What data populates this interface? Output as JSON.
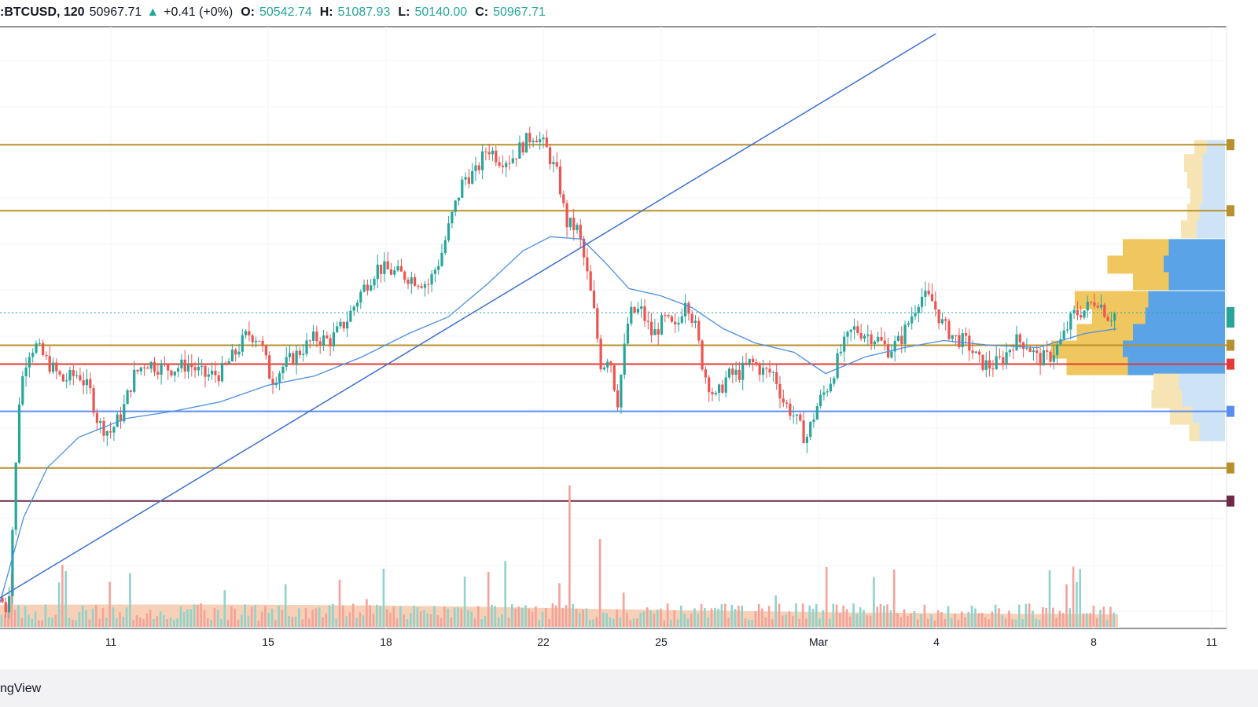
{
  "legend": {
    "symbol": ":BTCUSD, 120",
    "last": "50967.71",
    "change_arrow": "▲",
    "change": "+0.41 (+0%)",
    "o_label": "O:",
    "o": "50542.74",
    "h_label": "H:",
    "h": "51087.93",
    "l_label": "L:",
    "l": "50140.00",
    "c_label": "C:",
    "c": "50967.71"
  },
  "brand": "ngView",
  "colors": {
    "up": "#26a69a",
    "down": "#ef5350",
    "ma": "#4a90e2",
    "gold": "#b8902c",
    "red_line": "#e53935",
    "blue_line": "#5b8def",
    "purple_line": "#6d2a4a",
    "trend": "#3d6fd6"
  },
  "chart_data": {
    "type": "candlestick",
    "x_ticks": [
      "11",
      "15",
      "18",
      "22",
      "25",
      "Mar",
      "4",
      "8",
      "11"
    ],
    "price_series": [
      {
        "x": 0,
        "p": 50780
      },
      {
        "x": 10,
        "p": 50720
      },
      {
        "x": 18,
        "p": 51200
      },
      {
        "x": 25,
        "p": 51650
      },
      {
        "x": 35,
        "p": 51820
      },
      {
        "x": 45,
        "p": 51850
      },
      {
        "x": 60,
        "p": 51780
      },
      {
        "x": 80,
        "p": 51700
      },
      {
        "x": 100,
        "p": 51730
      },
      {
        "x": 115,
        "p": 51650
      },
      {
        "x": 125,
        "p": 51520
      },
      {
        "x": 140,
        "p": 51480
      },
      {
        "x": 155,
        "p": 51560
      },
      {
        "x": 170,
        "p": 51720
      },
      {
        "x": 185,
        "p": 51780
      },
      {
        "x": 200,
        "p": 51760
      },
      {
        "x": 220,
        "p": 51750
      },
      {
        "x": 240,
        "p": 51770
      },
      {
        "x": 260,
        "p": 51720
      },
      {
        "x": 280,
        "p": 51730
      },
      {
        "x": 300,
        "p": 51820
      },
      {
        "x": 315,
        "p": 51900
      },
      {
        "x": 330,
        "p": 51880
      },
      {
        "x": 345,
        "p": 51700
      },
      {
        "x": 360,
        "p": 51760
      },
      {
        "x": 380,
        "p": 51820
      },
      {
        "x": 400,
        "p": 51880
      },
      {
        "x": 420,
        "p": 51870
      },
      {
        "x": 440,
        "p": 51950
      },
      {
        "x": 460,
        "p": 52080
      },
      {
        "x": 480,
        "p": 52180
      },
      {
        "x": 500,
        "p": 52160
      },
      {
        "x": 520,
        "p": 52140
      },
      {
        "x": 545,
        "p": 52110
      },
      {
        "x": 560,
        "p": 52220
      },
      {
        "x": 575,
        "p": 52400
      },
      {
        "x": 590,
        "p": 52560
      },
      {
        "x": 605,
        "p": 52580
      },
      {
        "x": 620,
        "p": 52690
      },
      {
        "x": 635,
        "p": 52640
      },
      {
        "x": 650,
        "p": 52640
      },
      {
        "x": 665,
        "p": 52700
      },
      {
        "x": 680,
        "p": 52750
      },
      {
        "x": 695,
        "p": 52680
      },
      {
        "x": 710,
        "p": 52560
      },
      {
        "x": 720,
        "p": 52370
      },
      {
        "x": 735,
        "p": 52340
      },
      {
        "x": 745,
        "p": 52180
      },
      {
        "x": 755,
        "p": 52000
      },
      {
        "x": 765,
        "p": 51750
      },
      {
        "x": 775,
        "p": 51820
      },
      {
        "x": 785,
        "p": 51600
      },
      {
        "x": 800,
        "p": 51980
      },
      {
        "x": 815,
        "p": 52000
      },
      {
        "x": 830,
        "p": 51890
      },
      {
        "x": 845,
        "p": 51960
      },
      {
        "x": 860,
        "p": 51910
      },
      {
        "x": 872,
        "p": 52060
      },
      {
        "x": 885,
        "p": 51920
      },
      {
        "x": 895,
        "p": 51740
      },
      {
        "x": 910,
        "p": 51620
      },
      {
        "x": 925,
        "p": 51720
      },
      {
        "x": 940,
        "p": 51730
      },
      {
        "x": 955,
        "p": 51780
      },
      {
        "x": 970,
        "p": 51740
      },
      {
        "x": 985,
        "p": 51730
      },
      {
        "x": 995,
        "p": 51620
      },
      {
        "x": 1010,
        "p": 51550
      },
      {
        "x": 1025,
        "p": 51450
      },
      {
        "x": 1040,
        "p": 51600
      },
      {
        "x": 1055,
        "p": 51690
      },
      {
        "x": 1070,
        "p": 51830
      },
      {
        "x": 1085,
        "p": 51920
      },
      {
        "x": 1100,
        "p": 51900
      },
      {
        "x": 1115,
        "p": 51880
      },
      {
        "x": 1130,
        "p": 51830
      },
      {
        "x": 1145,
        "p": 51870
      },
      {
        "x": 1160,
        "p": 51980
      },
      {
        "x": 1170,
        "p": 52060
      },
      {
        "x": 1185,
        "p": 52040
      },
      {
        "x": 1200,
        "p": 51930
      },
      {
        "x": 1215,
        "p": 51880
      },
      {
        "x": 1230,
        "p": 51860
      },
      {
        "x": 1245,
        "p": 51780
      },
      {
        "x": 1260,
        "p": 51760
      },
      {
        "x": 1275,
        "p": 51790
      },
      {
        "x": 1290,
        "p": 51870
      },
      {
        "x": 1305,
        "p": 51860
      },
      {
        "x": 1320,
        "p": 51790
      },
      {
        "x": 1335,
        "p": 51800
      },
      {
        "x": 1350,
        "p": 51870
      },
      {
        "x": 1365,
        "p": 51980
      },
      {
        "x": 1380,
        "p": 52000
      },
      {
        "x": 1395,
        "p": 52050
      },
      {
        "x": 1410,
        "p": 51970
      },
      {
        "x": 1422,
        "p": 51990
      }
    ],
    "moving_average": [
      {
        "x": 0,
        "p": 50760
      },
      {
        "x": 30,
        "p": 51120
      },
      {
        "x": 60,
        "p": 51330
      },
      {
        "x": 100,
        "p": 51460
      },
      {
        "x": 160,
        "p": 51540
      },
      {
        "x": 220,
        "p": 51570
      },
      {
        "x": 280,
        "p": 51610
      },
      {
        "x": 340,
        "p": 51680
      },
      {
        "x": 400,
        "p": 51720
      },
      {
        "x": 460,
        "p": 51800
      },
      {
        "x": 520,
        "p": 51900
      },
      {
        "x": 570,
        "p": 51970
      },
      {
        "x": 620,
        "p": 52110
      },
      {
        "x": 665,
        "p": 52250
      },
      {
        "x": 700,
        "p": 52310
      },
      {
        "x": 740,
        "p": 52300
      },
      {
        "x": 770,
        "p": 52200
      },
      {
        "x": 800,
        "p": 52090
      },
      {
        "x": 840,
        "p": 52060
      },
      {
        "x": 880,
        "p": 52010
      },
      {
        "x": 920,
        "p": 51920
      },
      {
        "x": 960,
        "p": 51860
      },
      {
        "x": 1010,
        "p": 51820
      },
      {
        "x": 1050,
        "p": 51730
      },
      {
        "x": 1100,
        "p": 51800
      },
      {
        "x": 1150,
        "p": 51840
      },
      {
        "x": 1200,
        "p": 51870
      },
      {
        "x": 1260,
        "p": 51850
      },
      {
        "x": 1320,
        "p": 51840
      },
      {
        "x": 1380,
        "p": 51900
      },
      {
        "x": 1420,
        "p": 51920
      }
    ],
    "horizontal_levels": [
      {
        "price": 52700,
        "color": "gold"
      },
      {
        "price": 52420,
        "color": "gold"
      },
      {
        "price": 51850,
        "color": "gold"
      },
      {
        "price": 51770,
        "color": "red_line"
      },
      {
        "price": 51570,
        "color": "blue_line"
      },
      {
        "price": 51330,
        "color": "gold"
      },
      {
        "price": 51190,
        "color": "purple_line"
      }
    ],
    "trendline": {
      "from": {
        "x": 0,
        "p": 50780
      },
      "to": {
        "x": 1190,
        "p": 53170
      }
    },
    "volume_profile": [
      {
        "price": 52680,
        "up": 0.12,
        "down": 0.18
      },
      {
        "price": 52620,
        "up": 0.18,
        "down": 0.22
      },
      {
        "price": 52550,
        "up": 0.15,
        "down": 0.22
      },
      {
        "price": 52480,
        "up": 0.12,
        "down": 0.22
      },
      {
        "price": 52410,
        "up": 0.12,
        "down": 0.25
      },
      {
        "price": 52340,
        "up": 0.15,
        "down": 0.28
      },
      {
        "price": 52260,
        "up": 0.45,
        "down": 0.55
      },
      {
        "price": 52190,
        "up": 0.55,
        "down": 0.6
      },
      {
        "price": 52120,
        "up": 0.35,
        "down": 0.55
      },
      {
        "price": 52040,
        "up": 0.72,
        "down": 0.75
      },
      {
        "price": 51970,
        "up": 0.52,
        "down": 0.78
      },
      {
        "price": 51900,
        "up": 0.55,
        "down": 0.9
      },
      {
        "price": 51830,
        "up": 0.7,
        "down": 1.0
      },
      {
        "price": 51760,
        "up": 0.6,
        "down": 0.95
      },
      {
        "price": 51690,
        "up": 0.25,
        "down": 0.45
      },
      {
        "price": 51620,
        "up": 0.3,
        "down": 0.42
      },
      {
        "price": 51550,
        "up": 0.22,
        "down": 0.32
      },
      {
        "price": 51480,
        "up": 0.1,
        "down": 0.25
      }
    ],
    "last_price": 50967.71
  }
}
